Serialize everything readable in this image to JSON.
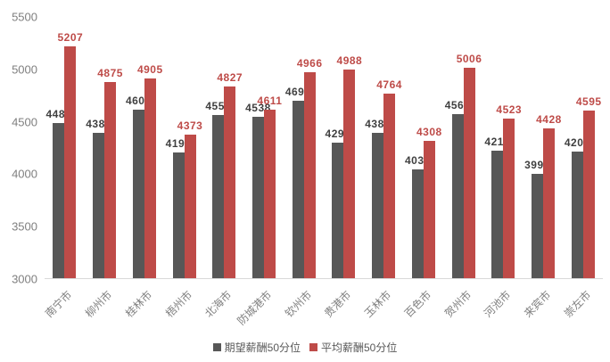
{
  "chart_data": {
    "type": "bar",
    "title": "",
    "categories": [
      "南宁市",
      "柳州市",
      "桂林市",
      "梧州市",
      "北海市",
      "防城港市",
      "钦州市",
      "贵港市",
      "玉林市",
      "百色市",
      "贺州市",
      "河池市",
      "来宾市",
      "崇左市"
    ],
    "series": [
      {
        "name": "期望薪酬50分位",
        "color": "#575757",
        "label_color": "#3f3f3f",
        "values": [
          4483,
          4388,
          4607,
          4198,
          4557,
          4538,
          4690,
          4293,
          4388,
          4039,
          4566,
          4218,
          3993,
          4204
        ]
      },
      {
        "name": "平均薪酬50分位",
        "color": "#be4b48",
        "label_color": "#be4b48",
        "values": [
          5207,
          4875,
          4905,
          4373,
          4827,
          4611,
          4966,
          4988,
          4764,
          4308,
          5006,
          4523,
          4428,
          4595
        ]
      }
    ],
    "ylim": [
      3000,
      5500
    ],
    "yticks": [
      3000,
      3500,
      4000,
      4500,
      5000,
      5500
    ],
    "grid": false,
    "legend_position": "bottom",
    "axis_line_color": "#d9d9d9",
    "tick_label_color": "#7f7f7f"
  }
}
